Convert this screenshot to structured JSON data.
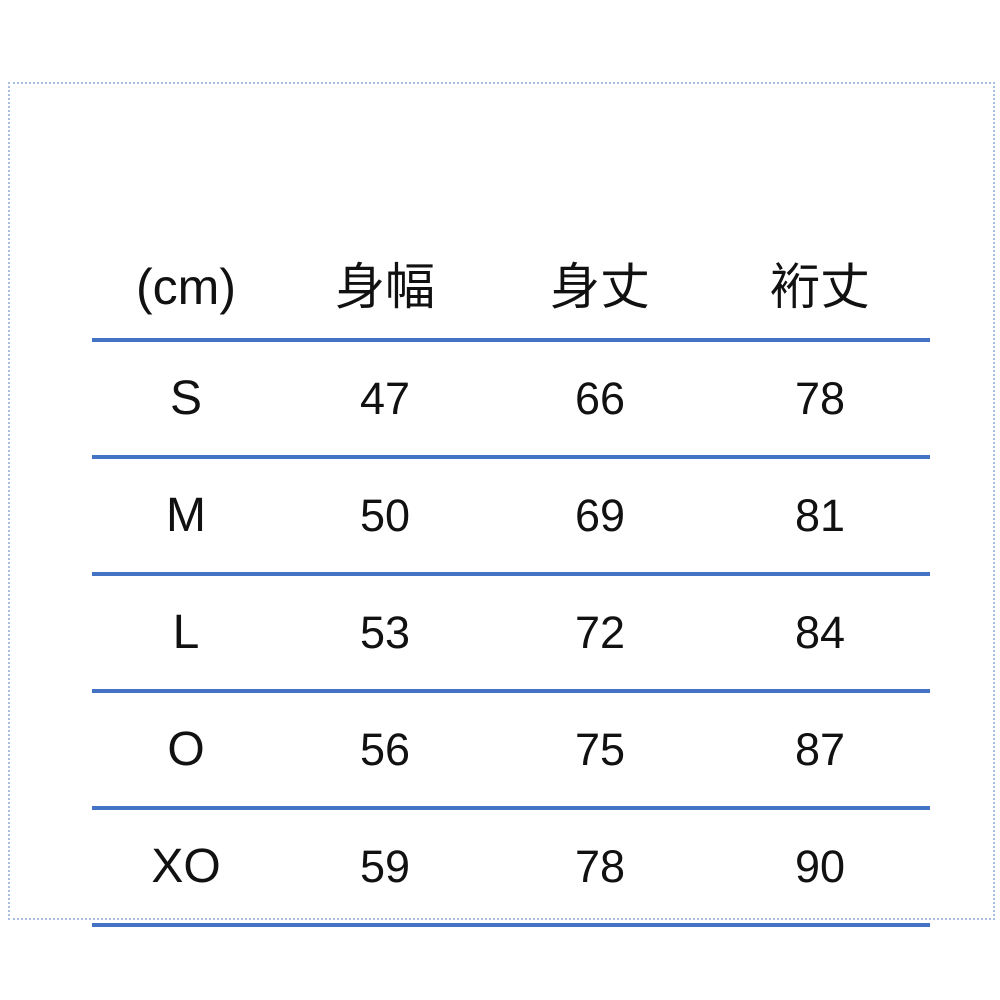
{
  "style": {
    "line_color": "#4472c4",
    "frame_border_color": "#a9bde0",
    "text_color": "#111111",
    "background_color": "#ffffff"
  },
  "chart_data": {
    "type": "table",
    "title": "",
    "unit": "cm",
    "columns": [
      "(cm)",
      "身幅",
      "身丈",
      "裄丈"
    ],
    "rows": [
      [
        "S",
        47,
        66,
        78
      ],
      [
        "M",
        50,
        69,
        81
      ],
      [
        "L",
        53,
        72,
        84
      ],
      [
        "O",
        56,
        75,
        87
      ],
      [
        "XO",
        59,
        78,
        90
      ]
    ],
    "layout_hints": {
      "row_separator": "horizontal blue rules between all rows",
      "frame": "light blue dotted rectangle around whole chart",
      "column_alignment": "center"
    }
  }
}
